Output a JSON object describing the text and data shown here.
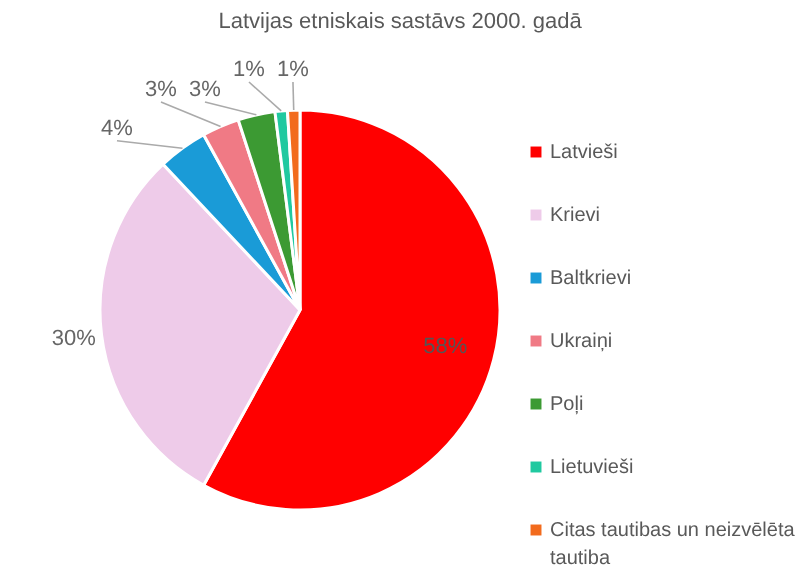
{
  "chart_data": {
    "type": "pie",
    "title": "Latvijas etniskais sastāvs 2000. gadā",
    "categories": [
      "Latvieši",
      "Krievi",
      "Baltkrievi",
      "Ukraiņi",
      "Poļi",
      "Lietuvieši",
      "Citas tautibas un neizvēlēta tautiba"
    ],
    "values": [
      58,
      30,
      4,
      3,
      3,
      1,
      1
    ],
    "colors": [
      "#ff0000",
      "#eecbe9",
      "#1a9bd7",
      "#f07a85",
      "#3c9a33",
      "#20c9a0",
      "#f26b1d"
    ],
    "value_labels": [
      "58%",
      "30%",
      "4%",
      "3%",
      "3%",
      "1%",
      "1%"
    ],
    "legend": "right"
  }
}
